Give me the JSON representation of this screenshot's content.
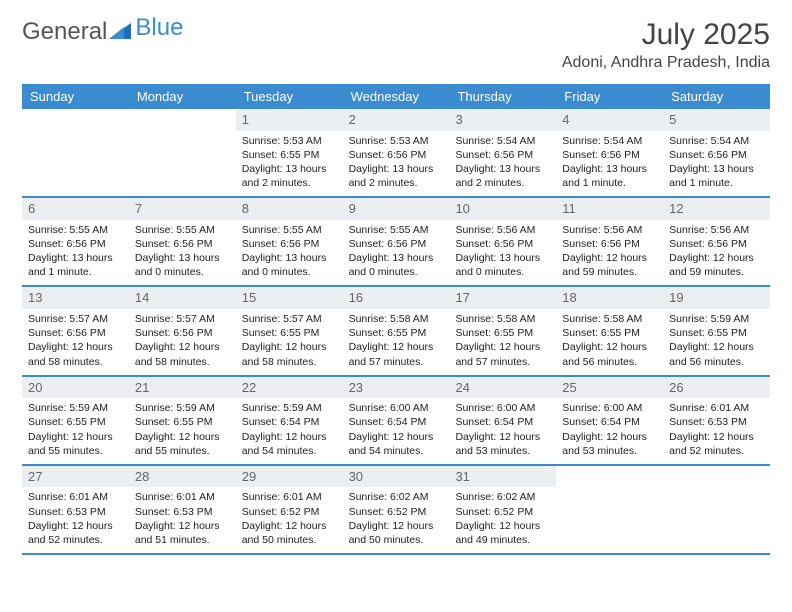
{
  "logo": {
    "part1": "General",
    "part2": "Blue"
  },
  "title": "July 2025",
  "location": "Adoni, Andhra Pradesh, India",
  "colors": {
    "accent": "#3b8bd0",
    "daynum_bg": "#eceff1",
    "text": "#333333",
    "white": "#ffffff"
  },
  "weekdays": [
    "Sunday",
    "Monday",
    "Tuesday",
    "Wednesday",
    "Thursday",
    "Friday",
    "Saturday"
  ],
  "weeks": [
    [
      {
        "num": "",
        "sunrise": "",
        "sunset": "",
        "daylight": ""
      },
      {
        "num": "",
        "sunrise": "",
        "sunset": "",
        "daylight": ""
      },
      {
        "num": "1",
        "sunrise": "Sunrise: 5:53 AM",
        "sunset": "Sunset: 6:55 PM",
        "daylight": "Daylight: 13 hours and 2 minutes."
      },
      {
        "num": "2",
        "sunrise": "Sunrise: 5:53 AM",
        "sunset": "Sunset: 6:56 PM",
        "daylight": "Daylight: 13 hours and 2 minutes."
      },
      {
        "num": "3",
        "sunrise": "Sunrise: 5:54 AM",
        "sunset": "Sunset: 6:56 PM",
        "daylight": "Daylight: 13 hours and 2 minutes."
      },
      {
        "num": "4",
        "sunrise": "Sunrise: 5:54 AM",
        "sunset": "Sunset: 6:56 PM",
        "daylight": "Daylight: 13 hours and 1 minute."
      },
      {
        "num": "5",
        "sunrise": "Sunrise: 5:54 AM",
        "sunset": "Sunset: 6:56 PM",
        "daylight": "Daylight: 13 hours and 1 minute."
      }
    ],
    [
      {
        "num": "6",
        "sunrise": "Sunrise: 5:55 AM",
        "sunset": "Sunset: 6:56 PM",
        "daylight": "Daylight: 13 hours and 1 minute."
      },
      {
        "num": "7",
        "sunrise": "Sunrise: 5:55 AM",
        "sunset": "Sunset: 6:56 PM",
        "daylight": "Daylight: 13 hours and 0 minutes."
      },
      {
        "num": "8",
        "sunrise": "Sunrise: 5:55 AM",
        "sunset": "Sunset: 6:56 PM",
        "daylight": "Daylight: 13 hours and 0 minutes."
      },
      {
        "num": "9",
        "sunrise": "Sunrise: 5:55 AM",
        "sunset": "Sunset: 6:56 PM",
        "daylight": "Daylight: 13 hours and 0 minutes."
      },
      {
        "num": "10",
        "sunrise": "Sunrise: 5:56 AM",
        "sunset": "Sunset: 6:56 PM",
        "daylight": "Daylight: 13 hours and 0 minutes."
      },
      {
        "num": "11",
        "sunrise": "Sunrise: 5:56 AM",
        "sunset": "Sunset: 6:56 PM",
        "daylight": "Daylight: 12 hours and 59 minutes."
      },
      {
        "num": "12",
        "sunrise": "Sunrise: 5:56 AM",
        "sunset": "Sunset: 6:56 PM",
        "daylight": "Daylight: 12 hours and 59 minutes."
      }
    ],
    [
      {
        "num": "13",
        "sunrise": "Sunrise: 5:57 AM",
        "sunset": "Sunset: 6:56 PM",
        "daylight": "Daylight: 12 hours and 58 minutes."
      },
      {
        "num": "14",
        "sunrise": "Sunrise: 5:57 AM",
        "sunset": "Sunset: 6:56 PM",
        "daylight": "Daylight: 12 hours and 58 minutes."
      },
      {
        "num": "15",
        "sunrise": "Sunrise: 5:57 AM",
        "sunset": "Sunset: 6:55 PM",
        "daylight": "Daylight: 12 hours and 58 minutes."
      },
      {
        "num": "16",
        "sunrise": "Sunrise: 5:58 AM",
        "sunset": "Sunset: 6:55 PM",
        "daylight": "Daylight: 12 hours and 57 minutes."
      },
      {
        "num": "17",
        "sunrise": "Sunrise: 5:58 AM",
        "sunset": "Sunset: 6:55 PM",
        "daylight": "Daylight: 12 hours and 57 minutes."
      },
      {
        "num": "18",
        "sunrise": "Sunrise: 5:58 AM",
        "sunset": "Sunset: 6:55 PM",
        "daylight": "Daylight: 12 hours and 56 minutes."
      },
      {
        "num": "19",
        "sunrise": "Sunrise: 5:59 AM",
        "sunset": "Sunset: 6:55 PM",
        "daylight": "Daylight: 12 hours and 56 minutes."
      }
    ],
    [
      {
        "num": "20",
        "sunrise": "Sunrise: 5:59 AM",
        "sunset": "Sunset: 6:55 PM",
        "daylight": "Daylight: 12 hours and 55 minutes."
      },
      {
        "num": "21",
        "sunrise": "Sunrise: 5:59 AM",
        "sunset": "Sunset: 6:55 PM",
        "daylight": "Daylight: 12 hours and 55 minutes."
      },
      {
        "num": "22",
        "sunrise": "Sunrise: 5:59 AM",
        "sunset": "Sunset: 6:54 PM",
        "daylight": "Daylight: 12 hours and 54 minutes."
      },
      {
        "num": "23",
        "sunrise": "Sunrise: 6:00 AM",
        "sunset": "Sunset: 6:54 PM",
        "daylight": "Daylight: 12 hours and 54 minutes."
      },
      {
        "num": "24",
        "sunrise": "Sunrise: 6:00 AM",
        "sunset": "Sunset: 6:54 PM",
        "daylight": "Daylight: 12 hours and 53 minutes."
      },
      {
        "num": "25",
        "sunrise": "Sunrise: 6:00 AM",
        "sunset": "Sunset: 6:54 PM",
        "daylight": "Daylight: 12 hours and 53 minutes."
      },
      {
        "num": "26",
        "sunrise": "Sunrise: 6:01 AM",
        "sunset": "Sunset: 6:53 PM",
        "daylight": "Daylight: 12 hours and 52 minutes."
      }
    ],
    [
      {
        "num": "27",
        "sunrise": "Sunrise: 6:01 AM",
        "sunset": "Sunset: 6:53 PM",
        "daylight": "Daylight: 12 hours and 52 minutes."
      },
      {
        "num": "28",
        "sunrise": "Sunrise: 6:01 AM",
        "sunset": "Sunset: 6:53 PM",
        "daylight": "Daylight: 12 hours and 51 minutes."
      },
      {
        "num": "29",
        "sunrise": "Sunrise: 6:01 AM",
        "sunset": "Sunset: 6:52 PM",
        "daylight": "Daylight: 12 hours and 50 minutes."
      },
      {
        "num": "30",
        "sunrise": "Sunrise: 6:02 AM",
        "sunset": "Sunset: 6:52 PM",
        "daylight": "Daylight: 12 hours and 50 minutes."
      },
      {
        "num": "31",
        "sunrise": "Sunrise: 6:02 AM",
        "sunset": "Sunset: 6:52 PM",
        "daylight": "Daylight: 12 hours and 49 minutes."
      },
      {
        "num": "",
        "sunrise": "",
        "sunset": "",
        "daylight": ""
      },
      {
        "num": "",
        "sunrise": "",
        "sunset": "",
        "daylight": ""
      }
    ]
  ]
}
